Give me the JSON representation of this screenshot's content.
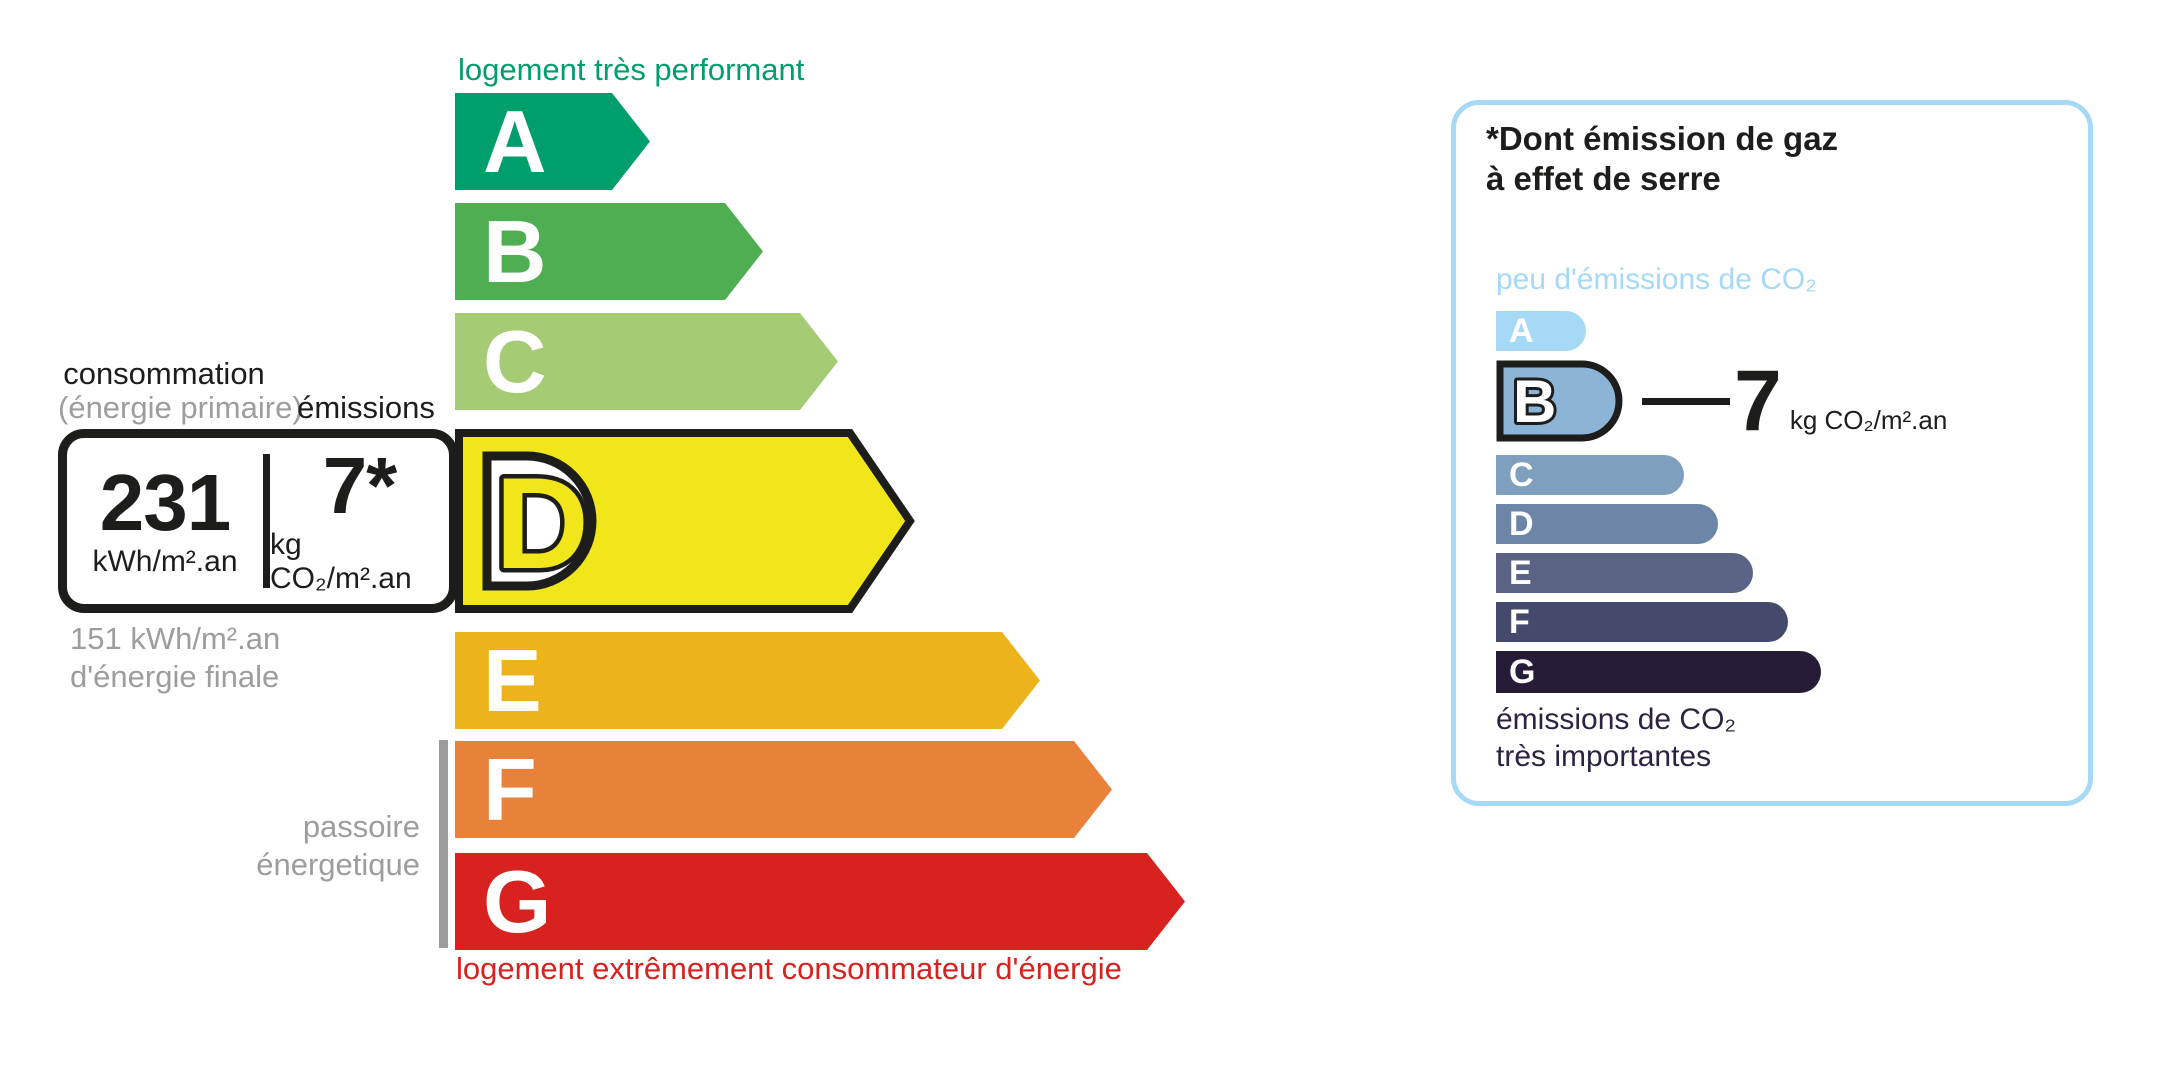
{
  "colors": {
    "green": "#009e6d",
    "red": "#d7221f",
    "gray": "#9d9d9c",
    "black": "#1d1d1b",
    "light_blue": "#a5d9f5",
    "dark_purple": "#2c2344"
  },
  "energy_scale": {
    "top_label": "logement très performant",
    "bottom_label": "logement extrêmement consommateur d'énergie",
    "passoire_label_line1": "passoire",
    "passoire_label_line2": "énergetique",
    "bars": [
      {
        "letter": "A",
        "color": "#009e6d"
      },
      {
        "letter": "B",
        "color": "#4fae51"
      },
      {
        "letter": "C",
        "color": "#a5cc74"
      },
      {
        "letter": "D",
        "color": "#f1e619",
        "selected": true
      },
      {
        "letter": "E",
        "color": "#edb31c"
      },
      {
        "letter": "F",
        "color": "#e8823a"
      },
      {
        "letter": "G",
        "color": "#d7221f"
      }
    ]
  },
  "reading": {
    "consumption_label": "consommation",
    "consumption_sublabel": "(énergie primaire)",
    "emissions_label": "émissions",
    "consumption_value": "231",
    "consumption_unit": "kWh/m².an",
    "emissions_value": "7*",
    "emissions_unit": "kg CO₂/m².an",
    "final_energy_line1": "151 kWh/m².an",
    "final_energy_line2": "d'énergie finale"
  },
  "ges_panel": {
    "title_line1": "*Dont émission de gaz",
    "title_line2": "à effet de serre",
    "top_label": "peu d'émissions de CO₂",
    "bottom_label_line1": "émissions de CO₂",
    "bottom_label_line2": "très importantes",
    "value": "7",
    "value_unit": "kg CO₂/m².an",
    "selected_class": "B",
    "border_color": "#a5d9f5",
    "bars": [
      {
        "letter": "A",
        "color": "#a5d9f5"
      },
      {
        "letter": "B",
        "color": "#8cb4d6",
        "selected": true
      },
      {
        "letter": "C",
        "color": "#7f9fbf"
      },
      {
        "letter": "D",
        "color": "#6d86a8"
      },
      {
        "letter": "E",
        "color": "#5a6384"
      },
      {
        "letter": "F",
        "color": "#454a6c"
      },
      {
        "letter": "G",
        "color": "#261c38"
      }
    ]
  },
  "chart_data": [
    {
      "type": "bar",
      "title": "Échelle DPE — consommation d'énergie",
      "categories": [
        "A",
        "B",
        "C",
        "D",
        "E",
        "F",
        "G"
      ],
      "values": [
        195,
        308,
        383,
        455,
        585,
        657,
        730
      ],
      "values_note": "longueurs relatives des flèches en px",
      "colors": [
        "#009e6d",
        "#4fae51",
        "#a5cc74",
        "#f1e619",
        "#edb31c",
        "#e8823a",
        "#d7221f"
      ],
      "selected_class": "D",
      "selected_values": {
        "consommation_energie_primaire_kwh_m2_an": 231,
        "emissions_kg_co2_m2_an": 7,
        "energie_finale_kwh_m2_an": 151
      },
      "top_annotation": "logement très performant",
      "bottom_annotation": "logement extrêmement consommateur d'énergie",
      "side_annotation": "passoire énergetique",
      "legend_position": "none",
      "grid": false
    },
    {
      "type": "bar",
      "title": "*Dont émission de gaz à effet de serre",
      "categories": [
        "A",
        "B",
        "C",
        "D",
        "E",
        "F",
        "G"
      ],
      "values": [
        90,
        134,
        188,
        222,
        257,
        292,
        325
      ],
      "values_note": "longueurs relatives des barres en px",
      "colors": [
        "#a5d9f5",
        "#8cb4d6",
        "#7f9fbf",
        "#6d86a8",
        "#5a6384",
        "#454a6c",
        "#261c38"
      ],
      "selected_class": "B",
      "selected_value_kg_co2_m2_an": 7,
      "top_annotation": "peu d'émissions de CO₂",
      "bottom_annotation": "émissions de CO₂ très importantes",
      "legend_position": "none",
      "grid": false
    }
  ]
}
